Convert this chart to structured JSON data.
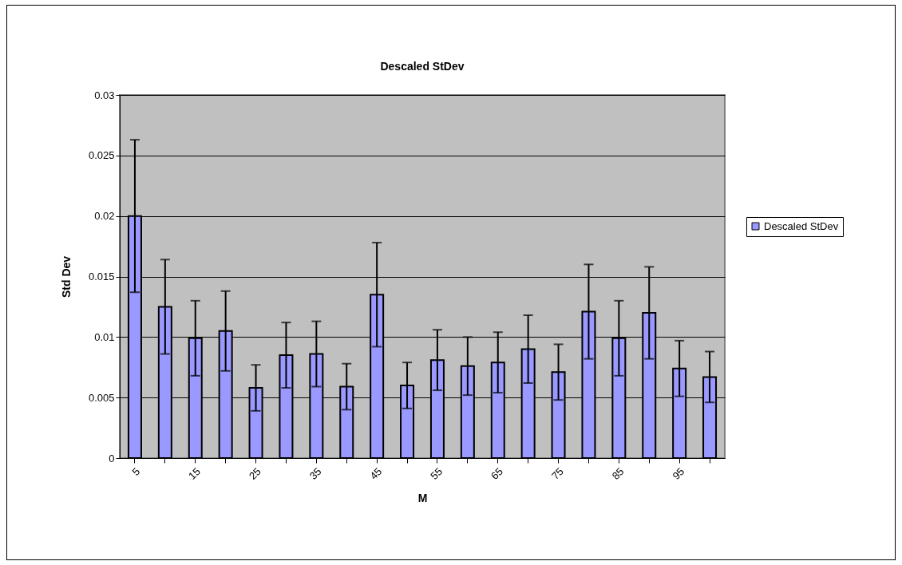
{
  "chart_data": {
    "type": "bar",
    "title": "Descaled StDev",
    "xlabel": "M",
    "ylabel": "Std Dev",
    "categories": [
      "5",
      null,
      "15",
      null,
      "25",
      null,
      "35",
      null,
      "45",
      null,
      "55",
      null,
      "65",
      null,
      "75",
      null,
      "85",
      null,
      "95",
      null
    ],
    "series": [
      {
        "name": "Descaled StDev",
        "color": "#9999ff",
        "values": [
          0.02,
          0.0125,
          0.0099,
          0.0105,
          0.0058,
          0.0085,
          0.0086,
          0.0059,
          0.0135,
          0.006,
          0.0081,
          0.0076,
          0.0079,
          0.009,
          0.0071,
          0.0121,
          0.0099,
          0.012,
          0.0074,
          0.0067
        ],
        "errors": [
          0.0063,
          0.0039,
          0.0031,
          0.0033,
          0.0019,
          0.0027,
          0.0027,
          0.0019,
          0.0043,
          0.0019,
          0.0025,
          0.0024,
          0.0025,
          0.0028,
          0.0023,
          0.0039,
          0.0031,
          0.0038,
          0.0023,
          0.0021
        ]
      }
    ],
    "ylim": [
      0,
      0.03
    ],
    "yticks": [
      0,
      0.005,
      0.01,
      0.015,
      0.02,
      0.025,
      0.03
    ],
    "grid": "y",
    "legend": "right"
  }
}
